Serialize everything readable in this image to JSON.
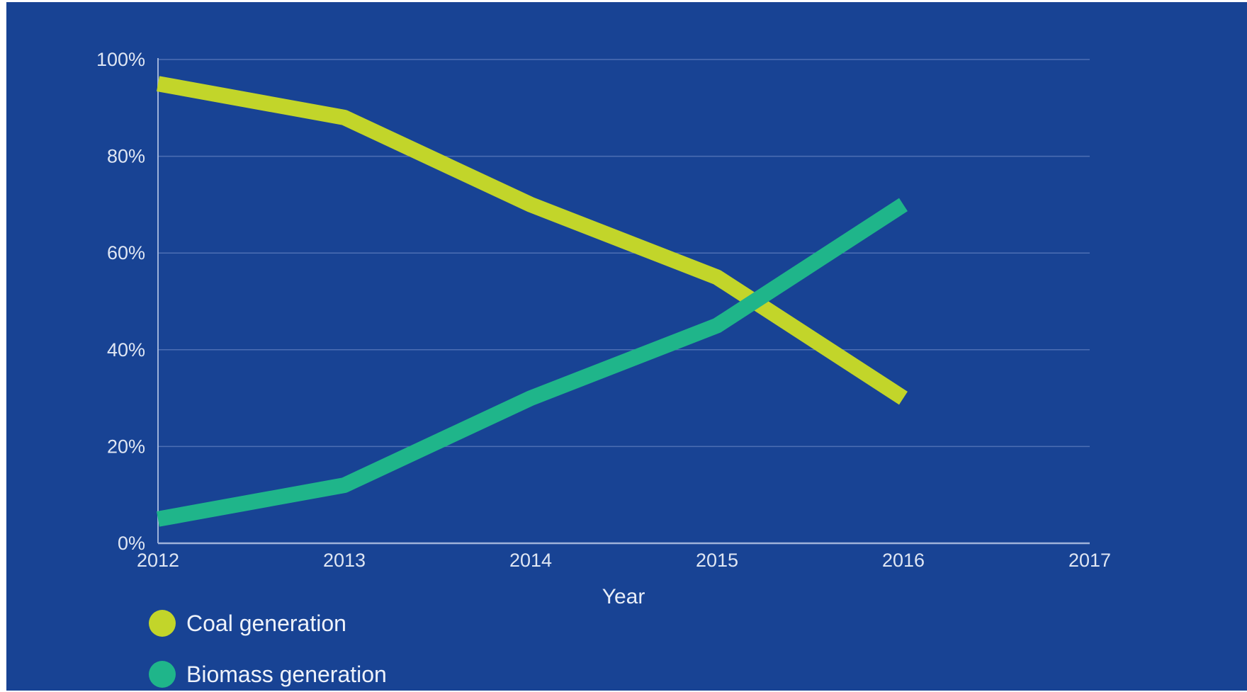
{
  "chart_data": {
    "type": "line",
    "title": "",
    "xlabel": "Year",
    "ylabel": "",
    "x": [
      2012,
      2013,
      2014,
      2015,
      2016
    ],
    "x_ticks": [
      "2012",
      "2013",
      "2014",
      "2015",
      "2016",
      "2017"
    ],
    "xlim": [
      2012,
      2017
    ],
    "y_ticks": [
      "0%",
      "20%",
      "40%",
      "60%",
      "80%",
      "100%"
    ],
    "ylim": [
      0,
      100
    ],
    "y_unit": "%",
    "grid": "horizontal",
    "legend_position": "bottom-left",
    "series": [
      {
        "name": "Coal generation",
        "color": "#c2d52a",
        "values": [
          95,
          88,
          70,
          55,
          30
        ]
      },
      {
        "name": "Biomass generation",
        "color": "#1fb58a",
        "values": [
          5,
          12,
          30,
          45,
          70
        ]
      }
    ]
  },
  "style": {
    "background": "#184394",
    "gridline_color": "#4d6fb4",
    "axis_color": "#9fb3da"
  }
}
